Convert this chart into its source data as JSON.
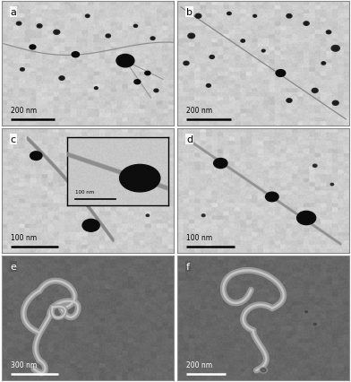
{
  "figure_width": 3.92,
  "figure_height": 4.27,
  "dpi": 100,
  "panels": [
    "a",
    "b",
    "c",
    "d",
    "e",
    "f"
  ],
  "scale_bars": {
    "a": "200 nm",
    "b": "200 nm",
    "c": "100 nm",
    "d": "100 nm",
    "e": "300 nm",
    "f": "200 nm"
  },
  "tem_bg_mean": 0.8,
  "tem_bg_std": 0.03,
  "sem_bg_mean": 0.4,
  "sem_bg_std": 0.025,
  "cnt_color_tem": "#909090",
  "cnt_color_sem": "#b8b8b8",
  "particle_color": "#111111",
  "scalebar_color_tem": "#000000",
  "scalebar_color_sem": "#000000",
  "label_color_tem": "#000000",
  "label_color_sem": "#ffffff",
  "border_color": "#000000"
}
